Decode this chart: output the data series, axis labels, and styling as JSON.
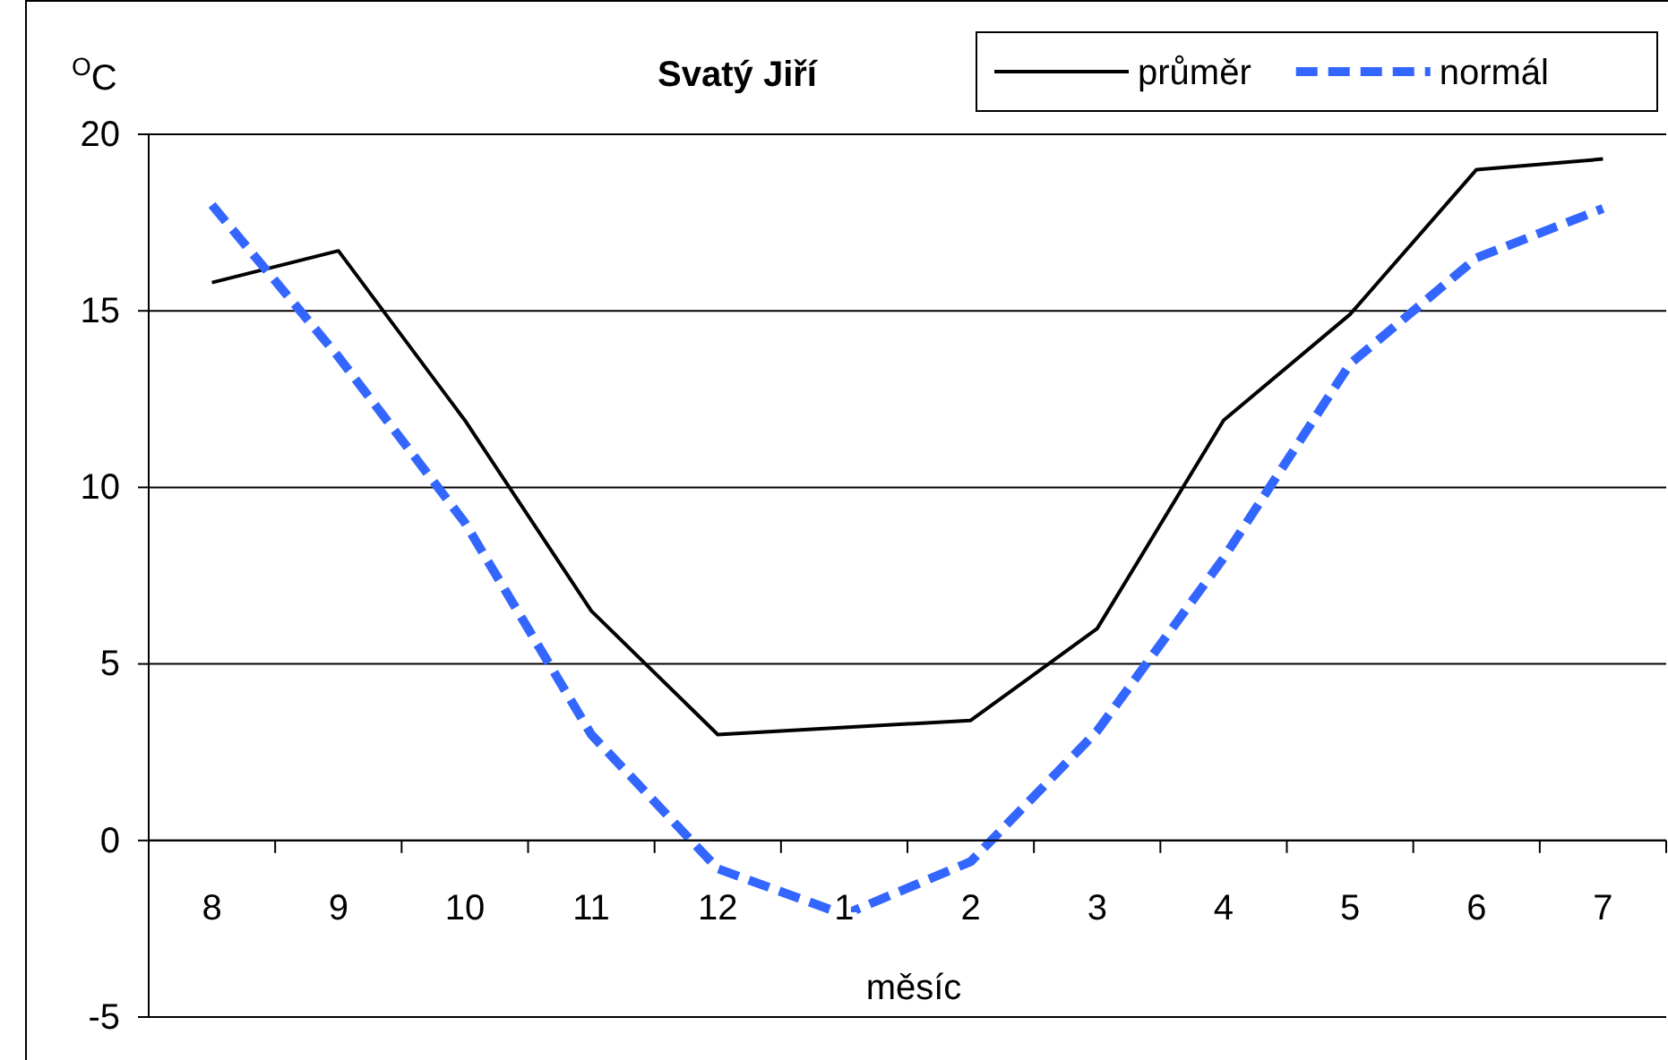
{
  "chart_data": {
    "type": "line",
    "title": "Svatý Jiří",
    "xlabel": "měsíc",
    "ylabel": "$^{O}$C",
    "categories": [
      "8",
      "9",
      "10",
      "11",
      "12",
      "1",
      "2",
      "3",
      "4",
      "5",
      "6",
      "7"
    ],
    "series": [
      {
        "name": "průměr",
        "color": "#000000",
        "line_style": "solid",
        "values": [
          15.8,
          16.7,
          11.9,
          6.5,
          3.0,
          3.2,
          3.4,
          6.0,
          11.9,
          14.9,
          19.0,
          19.3
        ]
      },
      {
        "name": "normál",
        "color": "#3366ff",
        "line_style": "dashed",
        "values": [
          18.0,
          13.7,
          9.0,
          3.0,
          -0.8,
          -2.1,
          -0.6,
          3.1,
          8.0,
          13.5,
          16.5,
          17.9
        ]
      }
    ],
    "ylim": [
      -5,
      20
    ],
    "yticks": [
      -5,
      0,
      5,
      10,
      15,
      20
    ],
    "grid": "y",
    "legend": "top right",
    "marker": "none"
  }
}
